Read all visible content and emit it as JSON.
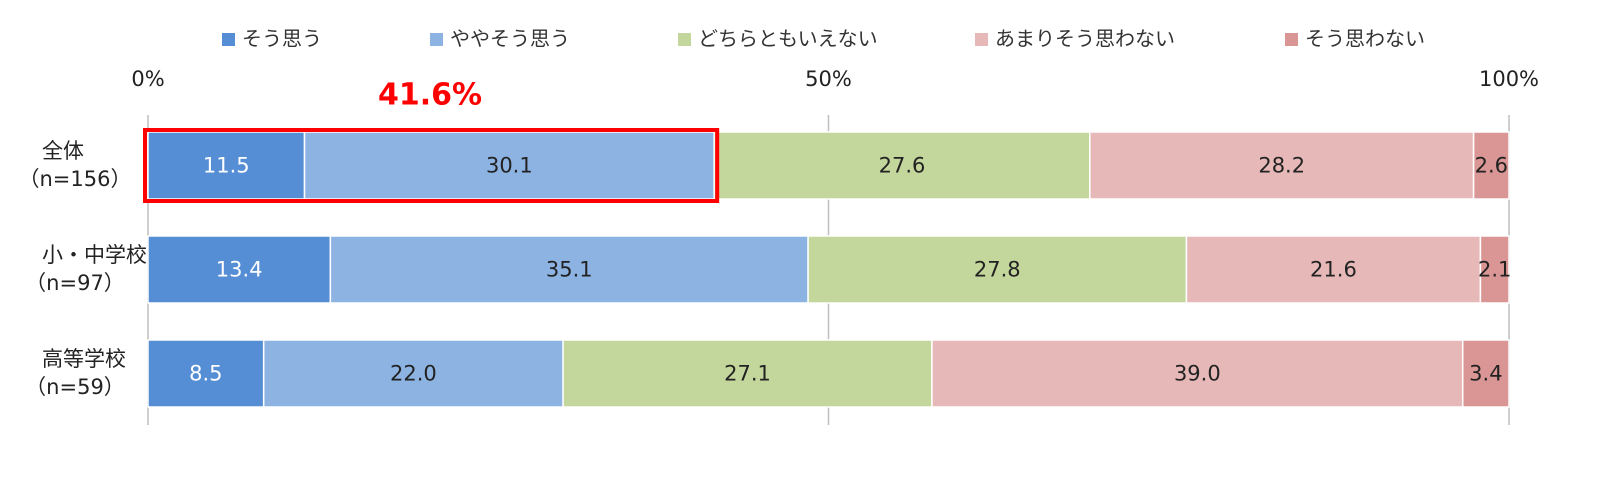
{
  "chart_data": {
    "type": "stacked-bar-horizontal",
    "categories": [
      [
        "全体",
        "（n=156）"
      ],
      [
        "小・中学校",
        "（n=97）"
      ],
      [
        "高等学校",
        "（n=59）"
      ]
    ],
    "series": [
      {
        "name": "そう思う",
        "color": "#558ed5",
        "values": [
          11.5,
          13.4,
          8.5
        ],
        "value_labels": [
          "11.5",
          "13.4",
          "8.5"
        ]
      },
      {
        "name": "ややそう思う",
        "color": "#8db3e2",
        "values": [
          30.1,
          35.1,
          22.0
        ],
        "value_labels": [
          "30.1",
          "35.1",
          "22.0"
        ]
      },
      {
        "name": "どちらともいえない",
        "color": "#c3d69b",
        "values": [
          27.6,
          27.8,
          27.1
        ],
        "value_labels": [
          "27.6",
          "27.8",
          "27.1"
        ]
      },
      {
        "name": "あまりそう思わない",
        "color": "#e6b9b8",
        "values": [
          28.2,
          21.6,
          39.0
        ],
        "value_labels": [
          "28.2",
          "21.6",
          "39.0"
        ]
      },
      {
        "name": "そう思わない",
        "color": "#d99694",
        "values": [
          2.6,
          2.1,
          3.4
        ],
        "value_labels": [
          "2.6",
          "2.1",
          "3.4"
        ]
      }
    ],
    "xlim": [
      0,
      100
    ],
    "xticks": [
      {
        "value": 0,
        "label": "0%"
      },
      {
        "value": 50,
        "label": "50%"
      },
      {
        "value": 100,
        "label": "100%"
      }
    ],
    "annotation": "41.6%",
    "legend": "top"
  }
}
